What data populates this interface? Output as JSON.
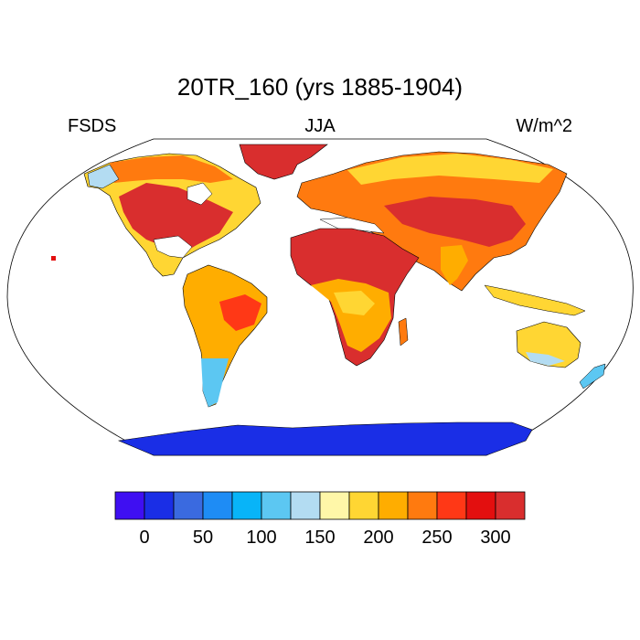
{
  "figure": {
    "title": "20TR_160 (yrs 1885-1904)",
    "variable": "FSDS",
    "season": "JJA",
    "units": "W/m^2"
  },
  "colors": {
    "ocean": "#ffffff",
    "border": "#000000",
    "levels": [
      "#3f0ff2",
      "#1a2ee6",
      "#3a6ae0",
      "#1e8cf5",
      "#08b4f8",
      "#5cc7f2",
      "#b3dcf2",
      "#fff7a8",
      "#ffd633",
      "#ffad00",
      "#ff7a0f",
      "#ff3816",
      "#e30f0f",
      "#d92e2e"
    ]
  },
  "chart_data": {
    "type": "heatmap",
    "projection": "Robinson (global)",
    "colorbar": {
      "boundaries": [
        0,
        25,
        50,
        75,
        100,
        125,
        150,
        175,
        200,
        225,
        250,
        275,
        300
      ],
      "tick_labels": [
        "0",
        "50",
        "100",
        "150",
        "200",
        "250",
        "300"
      ],
      "tick_values": [
        0,
        50,
        100,
        150,
        200,
        250,
        300
      ]
    }
  }
}
